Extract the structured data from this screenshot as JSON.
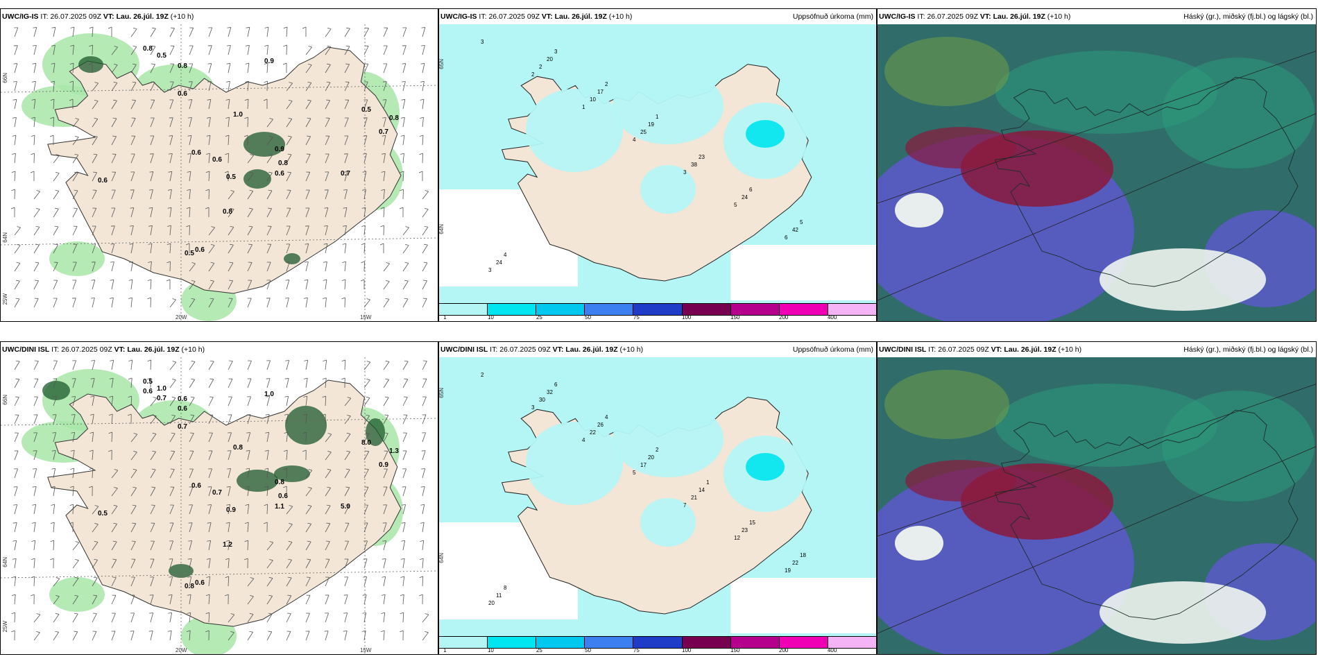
{
  "panels": [
    {
      "model": "UWC/IG-IS",
      "it_label": "IT:",
      "it_value": "26.07.2025 09Z",
      "vt_label": "VT:",
      "vt_value": "Lau. 26.júl. 19Z",
      "lead": "(+10 h)",
      "right_title": "",
      "axis_labels": [
        "66N",
        "64N",
        "25W",
        "20W",
        "15W"
      ],
      "numbers": [
        "0.8",
        "0.5",
        "0.8",
        "0.9",
        "0.6",
        "1.0",
        "0.6",
        "0.6",
        "0.7",
        "0.5",
        "0.7",
        "0.8",
        "0.9",
        "0.8",
        "0.6",
        "0.5",
        "0.8",
        "0.5",
        "0.6",
        "0.6"
      ]
    },
    {
      "model": "UWC/IG-IS",
      "it_label": "IT:",
      "it_value": "26.07.2025 09Z",
      "vt_label": "VT:",
      "vt_value": "Lau. 26.júl. 19Z",
      "lead": "(+10 h)",
      "right_title": "Uppsöfnuð úrkoma (mm)",
      "axis_labels": [
        "65N",
        "64N"
      ],
      "numbers": [
        "3",
        "2",
        "1",
        "4",
        "3",
        "5",
        "6",
        "3",
        "2",
        "10",
        "25",
        "38",
        "24",
        "42",
        "24",
        "20",
        "17",
        "19",
        "23",
        "6",
        "5",
        "4",
        "3",
        "2",
        "1"
      ]
    },
    {
      "model": "UWC/IG-IS",
      "it_label": "IT:",
      "it_value": "26.07.2025 09Z",
      "vt_label": "VT:",
      "vt_value": "Lau. 26.júl. 19Z",
      "lead": "(+10 h)",
      "right_title": "Háský (gr.), miðský (fj.bl.) og lágský (bl.)"
    },
    {
      "model": "UWC/DINI ISL",
      "it_label": "IT:",
      "it_value": "26.07.2025 09Z",
      "vt_label": "VT:",
      "vt_value": "Lau. 26.júl. 19Z",
      "lead": "(+10 h)",
      "right_title": "",
      "axis_labels": [
        "66N",
        "64N",
        "25W",
        "20W",
        "15W"
      ],
      "numbers": [
        "0.5",
        "1.0",
        "0.6",
        "1.0",
        "0.7",
        "0.8",
        "0.6",
        "1.1",
        "5.0",
        "8.0",
        "0.9",
        "1.3",
        "0.8",
        "0.6",
        "0.7",
        "0.9",
        "1.2",
        "0.8",
        "0.6",
        "0.5",
        "0.6",
        "0.7",
        "0.6"
      ]
    },
    {
      "model": "UWC/DINI ISL",
      "it_label": "IT:",
      "it_value": "26.07.2025 09Z",
      "vt_label": "VT:",
      "vt_value": "Lau. 26.júl. 19Z",
      "lead": "(+10 h)",
      "right_title": "Uppsöfnuð úrkoma (mm)",
      "axis_labels": [
        "65N",
        "64N"
      ],
      "numbers": [
        "2",
        "3",
        "4",
        "5",
        "7",
        "12",
        "19",
        "20",
        "30",
        "22",
        "17",
        "21",
        "23",
        "22",
        "11",
        "32",
        "26",
        "20",
        "14",
        "15",
        "18",
        "8",
        "6",
        "4",
        "2",
        "1"
      ]
    },
    {
      "model": "UWC/DINI ISL",
      "it_label": "IT:",
      "it_value": "26.07.2025 09Z",
      "vt_label": "VT:",
      "vt_value": "Lau. 26.júl. 19Z",
      "lead": "(+10 h)",
      "right_title": "Háský (gr.), miðský (fj.bl.) og lágský (bl.)"
    }
  ],
  "legend": {
    "ticks": [
      "1",
      "10",
      "25",
      "50",
      "75",
      "100",
      "150",
      "200",
      "400"
    ],
    "colors": [
      "#b4f5f5",
      "#00e6f0",
      "#00c8ee",
      "#3c7ff0",
      "#1e3cc8",
      "#780050",
      "#b4008c",
      "#f000b4",
      "#f5b4f5"
    ]
  },
  "colors": {
    "land": "#f3e6d6",
    "precip_light": "#b4f5f5",
    "cloud_high": "#2c9b7a",
    "cloud_mid": "#5b5ac8",
    "cloud_low": "#f0f5f0",
    "wind_green": "#a8e6a8",
    "dark_green": "#1e5a2e"
  }
}
